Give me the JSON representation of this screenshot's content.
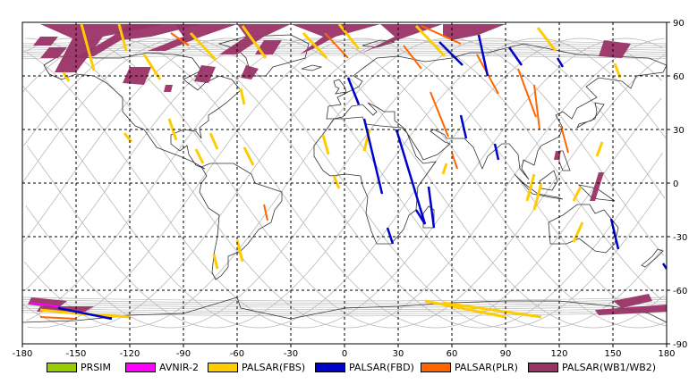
{
  "map": {
    "lon_range": [
      -180,
      180
    ],
    "lat_range": [
      -90,
      90
    ],
    "lon_ticks": [
      "-180",
      "-150",
      "-120",
      "-90",
      "-60",
      "-30",
      "0",
      "30",
      "60",
      "90",
      "120",
      "150",
      "180"
    ],
    "lat_ticks": [
      "90",
      "60",
      "30",
      "0",
      "-30",
      "-60",
      "-90"
    ],
    "grid": "dashed",
    "coastline_color": "#333333",
    "orbit_track_color": "#b8b8b8"
  },
  "legend": [
    {
      "label": "PRSIM",
      "color": "#99cc00"
    },
    {
      "label": "AVNIR-2",
      "color": "#ff00ff"
    },
    {
      "label": "PALSAR(FBS)",
      "color": "#ffcc00"
    },
    {
      "label": "PALSAR(FBD)",
      "color": "#0000cc"
    },
    {
      "label": "PALSAR(PLR)",
      "color": "#ff6600"
    },
    {
      "label": "PALSAR(WB1/WB2)",
      "color": "#993366"
    }
  ],
  "observations": {
    "wb": [
      [
        [
          -170,
          89
        ],
        [
          -100,
          89
        ],
        [
          -135,
          82
        ],
        [
          -150,
          62
        ],
        [
          -162,
          62
        ],
        [
          -152,
          81
        ]
      ],
      [
        [
          -120,
          89
        ],
        [
          -80,
          89
        ],
        [
          -108,
          82
        ],
        [
          -125,
          80
        ],
        [
          -140,
          71
        ],
        [
          -150,
          70
        ],
        [
          -130,
          82
        ]
      ],
      [
        [
          -95,
          89
        ],
        [
          -60,
          89
        ],
        [
          -80,
          82
        ],
        [
          -100,
          74
        ],
        [
          -110,
          74
        ],
        [
          -90,
          82
        ]
      ],
      [
        [
          -60,
          89
        ],
        [
          -30,
          89
        ],
        [
          -45,
          82
        ],
        [
          -60,
          72
        ],
        [
          -70,
          72
        ],
        [
          -55,
          82
        ]
      ],
      [
        [
          -30,
          89
        ],
        [
          20,
          89
        ],
        [
          -5,
          82
        ],
        [
          -18,
          75
        ],
        [
          -25,
          72
        ],
        [
          -12,
          82
        ]
      ],
      [
        [
          20,
          89
        ],
        [
          55,
          89
        ],
        [
          35,
          82
        ],
        [
          15,
          75
        ],
        [
          8,
          72
        ],
        [
          28,
          82
        ]
      ],
      [
        [
          55,
          89
        ],
        [
          90,
          89
        ],
        [
          75,
          83
        ],
        [
          60,
          80
        ],
        [
          55,
          82
        ]
      ],
      [
        [
          -165,
          76
        ],
        [
          -155,
          76
        ],
        [
          -160,
          70
        ],
        [
          -170,
          70
        ]
      ],
      [
        [
          -80,
          66
        ],
        [
          -72,
          65
        ],
        [
          -76,
          56
        ],
        [
          -84,
          57
        ]
      ],
      [
        [
          -120,
          65
        ],
        [
          -108,
          65
        ],
        [
          -112,
          55
        ],
        [
          -124,
          56
        ]
      ],
      [
        [
          -55,
          66
        ],
        [
          -48,
          64
        ],
        [
          -52,
          58
        ],
        [
          -58,
          59
        ]
      ],
      [
        [
          -100,
          55
        ],
        [
          -96,
          55
        ],
        [
          -97,
          51
        ],
        [
          -101,
          51
        ]
      ],
      [
        [
          -170,
          82
        ],
        [
          -160,
          82
        ],
        [
          -164,
          77
        ],
        [
          -174,
          77
        ]
      ],
      [
        [
          -45,
          80
        ],
        [
          -35,
          80
        ],
        [
          -40,
          72
        ],
        [
          -50,
          72
        ]
      ],
      [
        [
          145,
          80
        ],
        [
          160,
          78
        ],
        [
          155,
          70
        ],
        [
          142,
          71
        ]
      ],
      [
        [
          142,
          6
        ],
        [
          145,
          6
        ],
        [
          140,
          -10
        ],
        [
          137,
          -10
        ]
      ],
      [
        [
          118,
          18
        ],
        [
          121,
          18
        ],
        [
          120,
          13
        ],
        [
          117,
          13
        ]
      ],
      [
        [
          -175,
          -64
        ],
        [
          -155,
          -66
        ],
        [
          -160,
          -70
        ],
        [
          -177,
          -68
        ]
      ],
      [
        [
          -170,
          -69
        ],
        [
          -140,
          -69
        ],
        [
          -145,
          -72
        ],
        [
          -172,
          -72
        ]
      ],
      [
        [
          150,
          -66
        ],
        [
          170,
          -62
        ],
        [
          172,
          -66
        ],
        [
          155,
          -70
        ]
      ],
      [
        [
          140,
          -71
        ],
        [
          180,
          -68
        ],
        [
          180,
          -72
        ],
        [
          142,
          -74
        ]
      ]
    ],
    "fbs": [
      [
        [
          -147,
          89
        ],
        [
          -140,
          63
        ]
      ],
      [
        [
          -126,
          89
        ],
        [
          -122,
          74
        ]
      ],
      [
        [
          -112,
          72
        ],
        [
          -103,
          58
        ]
      ],
      [
        [
          -86,
          84
        ],
        [
          -72,
          69
        ]
      ],
      [
        [
          -57,
          88
        ],
        [
          -44,
          70
        ]
      ],
      [
        [
          -23,
          84
        ],
        [
          -10,
          70
        ]
      ],
      [
        [
          40,
          88
        ],
        [
          56,
          71
        ]
      ],
      [
        [
          -3,
          89
        ],
        [
          8,
          75
        ]
      ],
      [
        [
          108,
          87
        ],
        [
          118,
          74
        ]
      ],
      [
        [
          151,
          67
        ],
        [
          154,
          59
        ]
      ],
      [
        [
          -157,
          62
        ],
        [
          -154,
          57
        ]
      ],
      [
        [
          -123,
          28
        ],
        [
          -119,
          23
        ]
      ],
      [
        [
          -98,
          36
        ],
        [
          -94,
          24
        ]
      ],
      [
        [
          -58,
          53
        ],
        [
          -56,
          44
        ]
      ],
      [
        [
          -12,
          27
        ],
        [
          -9,
          16
        ]
      ],
      [
        [
          -6,
          4
        ],
        [
          -3,
          -3
        ]
      ],
      [
        [
          14,
          30
        ],
        [
          11,
          18
        ]
      ],
      [
        [
          57,
          11
        ],
        [
          55,
          5
        ]
      ],
      [
        [
          106,
          5
        ],
        [
          102,
          -10
        ]
      ],
      [
        [
          110,
          0
        ],
        [
          106,
          -15
        ]
      ],
      [
        [
          132,
          -2
        ],
        [
          128,
          -10
        ]
      ],
      [
        [
          133,
          -22
        ],
        [
          128,
          -33
        ]
      ],
      [
        [
          144,
          23
        ],
        [
          141,
          15
        ]
      ],
      [
        [
          -60,
          -32
        ],
        [
          -57,
          -44
        ]
      ],
      [
        [
          -73,
          -40
        ],
        [
          -71,
          -48
        ]
      ],
      [
        [
          45,
          -66
        ],
        [
          90,
          -75
        ]
      ],
      [
        [
          55,
          -67
        ],
        [
          110,
          -75
        ]
      ],
      [
        [
          -170,
          -71
        ],
        [
          -150,
          -73
        ]
      ],
      [
        [
          -150,
          -73
        ],
        [
          -120,
          -75
        ]
      ],
      [
        [
          -83,
          19
        ],
        [
          -79,
          11
        ]
      ],
      [
        [
          -56,
          20
        ],
        [
          -51,
          10
        ]
      ],
      [
        [
          -75,
          28
        ],
        [
          -71,
          19
        ]
      ]
    ],
    "fbd": [
      [
        [
          53,
          79
        ],
        [
          66,
          66
        ]
      ],
      [
        [
          75,
          83
        ],
        [
          80,
          60
        ]
      ],
      [
        [
          92,
          76
        ],
        [
          99,
          66
        ]
      ],
      [
        [
          2,
          59
        ],
        [
          8,
          44
        ]
      ],
      [
        [
          11,
          36
        ],
        [
          21,
          -6
        ]
      ],
      [
        [
          29,
          30
        ],
        [
          45,
          -23
        ]
      ],
      [
        [
          40,
          -15
        ],
        [
          45,
          -23
        ]
      ],
      [
        [
          65,
          38
        ],
        [
          68,
          25
        ]
      ],
      [
        [
          84,
          22
        ],
        [
          86,
          13
        ]
      ],
      [
        [
          47,
          -2
        ],
        [
          50,
          -25
        ]
      ],
      [
        [
          24,
          -25
        ],
        [
          27,
          -34
        ]
      ],
      [
        [
          149,
          -20
        ],
        [
          153,
          -37
        ]
      ],
      [
        [
          178,
          -45
        ],
        [
          180,
          -48
        ]
      ],
      [
        [
          -160,
          -70
        ],
        [
          -130,
          -76
        ]
      ],
      [
        [
          119,
          70
        ],
        [
          122,
          65
        ]
      ]
    ],
    "plr": [
      [
        [
          -11,
          84
        ],
        [
          2,
          70
        ]
      ],
      [
        [
          33,
          77
        ],
        [
          43,
          64
        ]
      ],
      [
        [
          74,
          72
        ],
        [
          86,
          50
        ]
      ],
      [
        [
          97,
          64
        ],
        [
          107,
          37
        ]
      ],
      [
        [
          48,
          51
        ],
        [
          58,
          26
        ]
      ],
      [
        [
          60,
          17
        ],
        [
          63,
          8
        ]
      ],
      [
        [
          106,
          55
        ],
        [
          109,
          30
        ]
      ],
      [
        [
          121,
          32
        ],
        [
          125,
          17
        ]
      ],
      [
        [
          -45,
          -12
        ],
        [
          -43,
          -21
        ]
      ],
      [
        [
          -170,
          -75
        ],
        [
          -150,
          -76
        ]
      ],
      [
        [
          43,
          88
        ],
        [
          65,
          78
        ]
      ],
      [
        [
          -97,
          84
        ],
        [
          -87,
          77
        ]
      ]
    ],
    "avnir": [
      [
        [
          -176,
          -67
        ],
        [
          -160,
          -69
        ]
      ]
    ]
  }
}
